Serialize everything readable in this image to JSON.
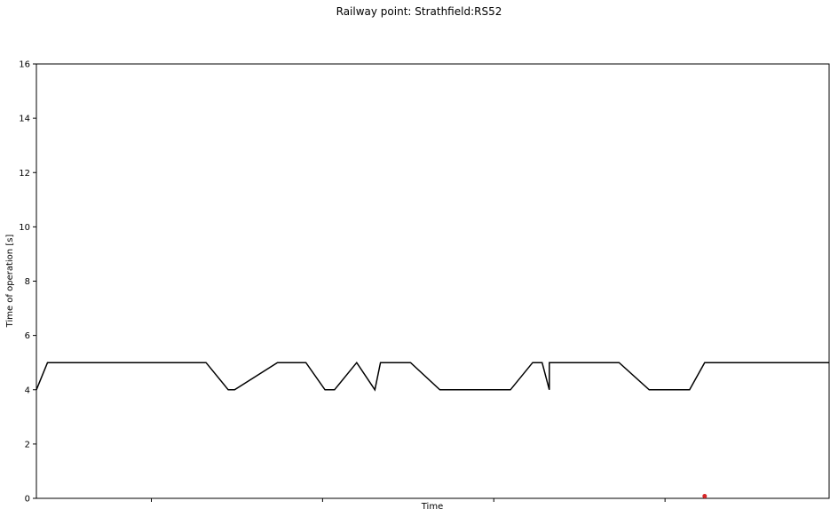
{
  "chart_data": {
    "type": "line",
    "title": "Railway point: Strathfield:RS52",
    "xlabel": "Time",
    "ylabel": "Time of operation [s]",
    "ylim": [
      0,
      16
    ],
    "yticks": [
      0,
      2,
      4,
      6,
      8,
      10,
      12,
      14,
      16
    ],
    "xlim": [
      0,
      100
    ],
    "xticks": [
      14.5,
      36.1,
      57.7,
      79.3
    ],
    "grid": false,
    "colors": {
      "line": "#000000",
      "marker": "#d62728"
    },
    "series": [
      {
        "values": [
          [
            0,
            4
          ],
          [
            1.4,
            5
          ],
          [
            21.4,
            5
          ],
          [
            24.2,
            4
          ],
          [
            25.0,
            4
          ],
          [
            30.4,
            5
          ],
          [
            34.0,
            5
          ],
          [
            36.4,
            4
          ],
          [
            37.6,
            4
          ],
          [
            40.4,
            5
          ],
          [
            42.7,
            4
          ],
          [
            43.4,
            5
          ],
          [
            47.2,
            5
          ],
          [
            50.9,
            4
          ],
          [
            59.8,
            4
          ],
          [
            62.6,
            5
          ],
          [
            63.8,
            5
          ],
          [
            64.7,
            4
          ],
          [
            64.7,
            5
          ],
          [
            73.5,
            5
          ],
          [
            77.3,
            4
          ],
          [
            82.4,
            4
          ],
          [
            84.3,
            5
          ],
          [
            100,
            5
          ]
        ]
      }
    ],
    "points": [
      {
        "x": 84.3,
        "y": 0.08
      }
    ]
  }
}
